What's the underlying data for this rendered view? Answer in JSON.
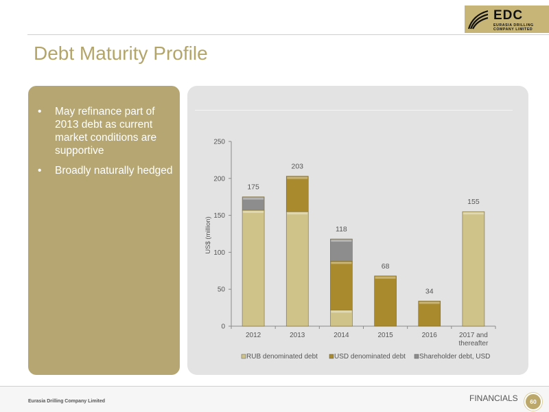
{
  "logo": {
    "brand": "EDC",
    "sub_line1": "EURASIA DRILLING",
    "sub_line2": "COMPANY LIMITED"
  },
  "page_title": "Debt Maturity Profile",
  "bullets": [
    "May refinance part of 2013 debt as current market conditions are supportive",
    "Broadly naturally hedged"
  ],
  "bullet_glyph": "•",
  "chart_data": {
    "type": "bar",
    "stacked": true,
    "categories": [
      "2012",
      "2013",
      "2014",
      "2015",
      "2016",
      "2017 and thereafter"
    ],
    "series": [
      {
        "name": "RUB denominated debt",
        "color": "#cfc38a",
        "values": [
          157,
          155,
          22,
          0,
          0,
          155
        ]
      },
      {
        "name": "USD denominated debt",
        "color": "#a98b2e",
        "values": [
          0,
          48,
          66,
          68,
          34,
          0
        ]
      },
      {
        "name": "Shareholder  debt, USD",
        "color": "#8d8d8d",
        "values": [
          18,
          0,
          30,
          0,
          0,
          0
        ]
      }
    ],
    "totals": [
      "175",
      "203",
      "118",
      "68",
      "34",
      "155"
    ],
    "ylabel": "US$ (million)",
    "ylim": [
      0,
      250
    ],
    "yticks": [
      "0",
      "50",
      "100",
      "150",
      "200",
      "250"
    ],
    "legend_position": "bottom"
  },
  "footer": {
    "company": "Eurasia Drilling Company Limited",
    "section": "FINANCIALS",
    "page_number": "60"
  }
}
